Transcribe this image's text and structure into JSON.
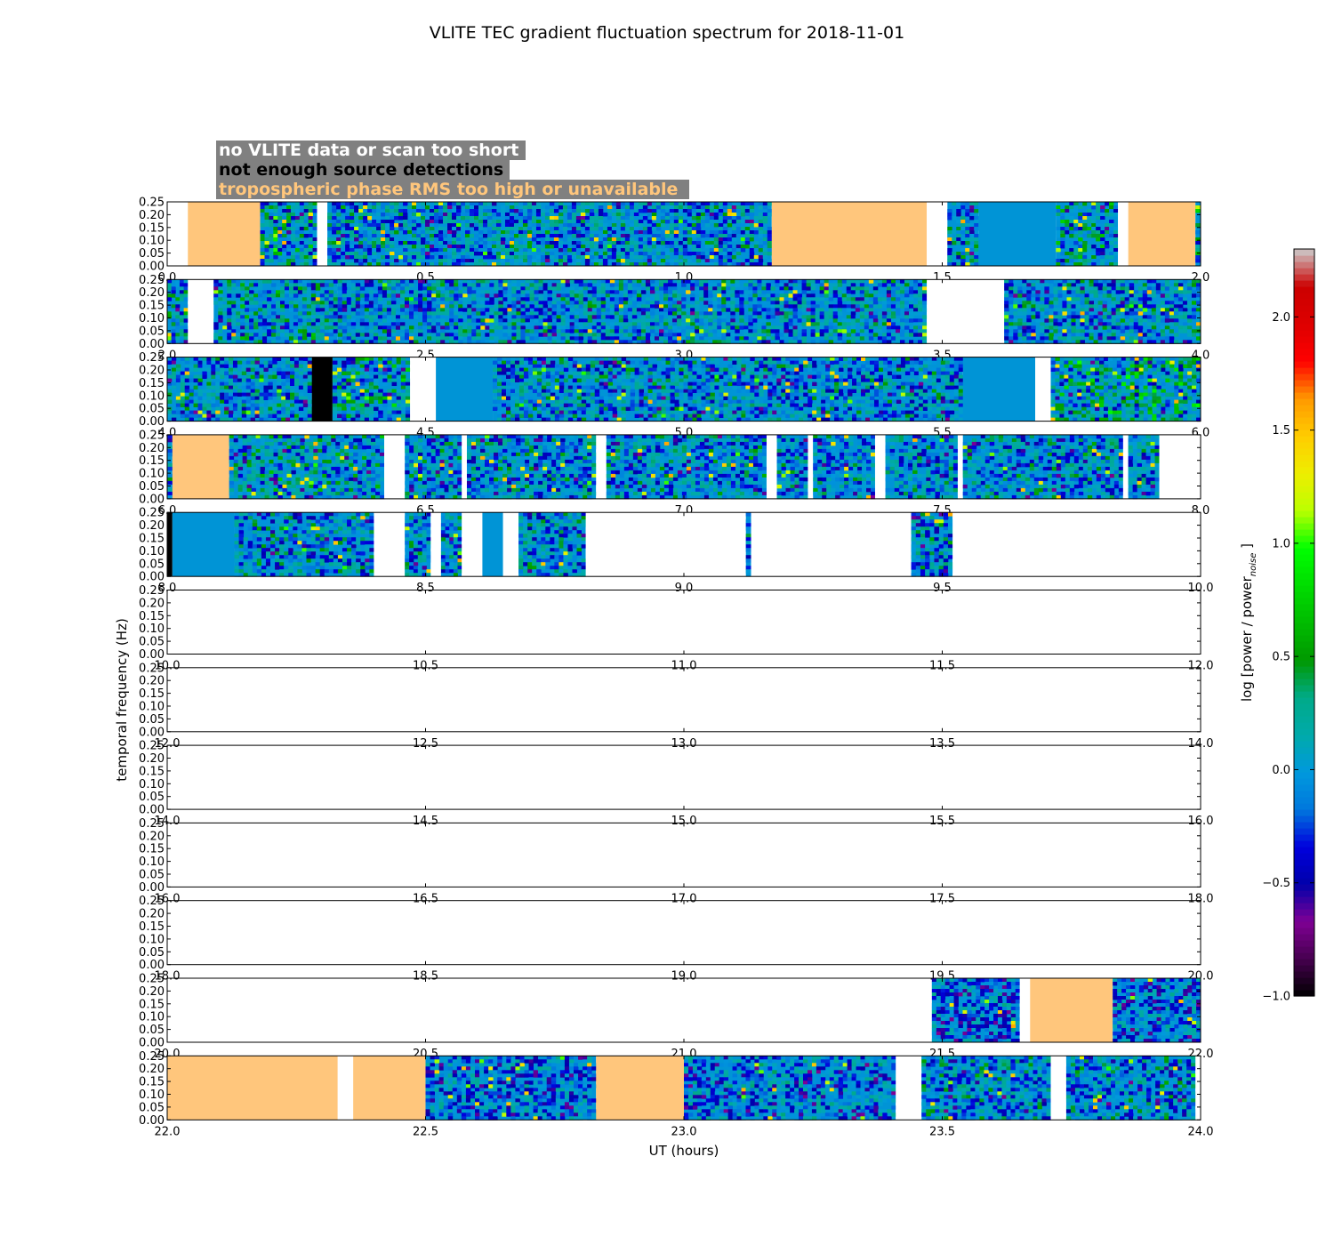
{
  "chart_data": {
    "type": "heatmap",
    "title": "VLITE TEC gradient fluctuation spectrum for 2018-11-01",
    "xlabel": "UT (hours)",
    "ylabel": "temporal frequency (Hz)",
    "ylim": [
      0,
      0.25
    ],
    "yticks": [
      "0.00",
      "0.05",
      "0.10",
      "0.15",
      "0.20",
      "0.25"
    ],
    "grid": false,
    "legend": {
      "placement": "top-left",
      "entries": [
        {
          "text": "no VLITE data or scan too short",
          "color": "#ffffff",
          "background": "#808080"
        },
        {
          "text": "not enough source detections",
          "color": "#000000",
          "background": "#808080"
        },
        {
          "text": "tropospheric phase RMS too high or unavailable",
          "color": "#ffc67c",
          "background": "#808080"
        }
      ]
    },
    "colorbar": {
      "label": "log [power / power",
      "label_subscript": "noise",
      "label_suffix": "]",
      "range": [
        -1.0,
        2.3
      ],
      "ticks": [
        "−1.0",
        "−0.5",
        "0.0",
        "0.5",
        "1.0",
        "1.5",
        "2.0"
      ],
      "tick_values": [
        -1.0,
        -0.5,
        0.0,
        0.5,
        1.0,
        1.5,
        2.0
      ],
      "colormap": "nipy_spectral"
    },
    "category_colors": {
      "no_data": "#ffffff",
      "few_detections": "#000000",
      "troposphere": "#ffc67c",
      "baseline": "#0094d6"
    },
    "panels": [
      {
        "xlim": [
          0,
          2
        ],
        "xticks": [
          "0.0",
          "0.5",
          "1.0",
          "1.5",
          "2.0"
        ],
        "segments": [
          {
            "start": 0.0,
            "end": 0.04,
            "kind": "none"
          },
          {
            "start": 0.04,
            "end": 0.18,
            "kind": "tropo"
          },
          {
            "start": 0.18,
            "end": 0.29,
            "kind": "spec",
            "level": 0.5,
            "seed": 11
          },
          {
            "start": 0.29,
            "end": 0.31,
            "kind": "none"
          },
          {
            "start": 0.31,
            "end": 1.17,
            "kind": "spec",
            "level": 0.3,
            "seed": 12
          },
          {
            "start": 1.17,
            "end": 1.47,
            "kind": "tropo"
          },
          {
            "start": 1.47,
            "end": 1.51,
            "kind": "none"
          },
          {
            "start": 1.51,
            "end": 1.57,
            "kind": "spec",
            "level": 0.3,
            "seed": 13
          },
          {
            "start": 1.57,
            "end": 1.72,
            "kind": "base"
          },
          {
            "start": 1.72,
            "end": 1.84,
            "kind": "spec",
            "level": 0.5,
            "seed": 14
          },
          {
            "start": 1.84,
            "end": 1.86,
            "kind": "none"
          },
          {
            "start": 1.86,
            "end": 1.99,
            "kind": "tropo"
          },
          {
            "start": 1.99,
            "end": 2.0,
            "kind": "spec",
            "level": 0.5,
            "seed": 15
          }
        ]
      },
      {
        "xlim": [
          2,
          4
        ],
        "xticks": [
          "2.0",
          "2.5",
          "3.0",
          "3.5",
          "4.0"
        ],
        "segments": [
          {
            "start": 2.0,
            "end": 2.04,
            "kind": "spec",
            "level": 0.4,
            "seed": 21
          },
          {
            "start": 2.04,
            "end": 2.09,
            "kind": "none"
          },
          {
            "start": 2.09,
            "end": 2.33,
            "kind": "spec",
            "level": 0.4,
            "seed": 22
          },
          {
            "start": 2.33,
            "end": 3.47,
            "kind": "spec",
            "level": 0.3,
            "seed": 23
          },
          {
            "start": 3.47,
            "end": 3.62,
            "kind": "none"
          },
          {
            "start": 3.62,
            "end": 4.0,
            "kind": "spec",
            "level": 0.3,
            "seed": 24
          }
        ]
      },
      {
        "xlim": [
          4,
          6
        ],
        "xticks": [
          "4.0",
          "4.5",
          "5.0",
          "5.5",
          "6.0"
        ],
        "segments": [
          {
            "start": 4.0,
            "end": 4.28,
            "kind": "spec",
            "level": 0.3,
            "seed": 31
          },
          {
            "start": 4.28,
            "end": 4.32,
            "kind": "few"
          },
          {
            "start": 4.32,
            "end": 4.47,
            "kind": "spec",
            "level": 0.5,
            "seed": 32
          },
          {
            "start": 4.47,
            "end": 4.52,
            "kind": "none"
          },
          {
            "start": 4.52,
            "end": 4.63,
            "kind": "base"
          },
          {
            "start": 4.63,
            "end": 5.54,
            "kind": "spec",
            "level": 0.3,
            "seed": 33
          },
          {
            "start": 5.54,
            "end": 5.68,
            "kind": "base"
          },
          {
            "start": 5.68,
            "end": 5.71,
            "kind": "none"
          },
          {
            "start": 5.71,
            "end": 6.0,
            "kind": "spec",
            "level": 0.6,
            "seed": 34
          }
        ]
      },
      {
        "xlim": [
          6,
          8
        ],
        "xticks": [
          "6.0",
          "6.5",
          "7.0",
          "7.5",
          "8.0"
        ],
        "segments": [
          {
            "start": 6.0,
            "end": 6.01,
            "kind": "spec",
            "level": 0.3,
            "seed": 41
          },
          {
            "start": 6.01,
            "end": 6.12,
            "kind": "tropo"
          },
          {
            "start": 6.12,
            "end": 6.42,
            "kind": "spec",
            "level": 0.4,
            "seed": 42
          },
          {
            "start": 6.42,
            "end": 6.46,
            "kind": "none"
          },
          {
            "start": 6.46,
            "end": 6.57,
            "kind": "spec",
            "level": 0.3,
            "seed": 43
          },
          {
            "start": 6.57,
            "end": 6.58,
            "kind": "none"
          },
          {
            "start": 6.58,
            "end": 6.83,
            "kind": "spec",
            "level": 0.3,
            "seed": 44
          },
          {
            "start": 6.83,
            "end": 6.85,
            "kind": "none"
          },
          {
            "start": 6.85,
            "end": 7.16,
            "kind": "spec",
            "level": 0.3,
            "seed": 45
          },
          {
            "start": 7.16,
            "end": 7.18,
            "kind": "none"
          },
          {
            "start": 7.18,
            "end": 7.24,
            "kind": "spec",
            "level": 0.3,
            "seed": 46
          },
          {
            "start": 7.24,
            "end": 7.25,
            "kind": "none"
          },
          {
            "start": 7.25,
            "end": 7.37,
            "kind": "spec",
            "level": 0.3,
            "seed": 47
          },
          {
            "start": 7.37,
            "end": 7.39,
            "kind": "none"
          },
          {
            "start": 7.39,
            "end": 7.53,
            "kind": "spec",
            "level": 0.3,
            "seed": 48
          },
          {
            "start": 7.53,
            "end": 7.54,
            "kind": "none"
          },
          {
            "start": 7.54,
            "end": 7.85,
            "kind": "spec",
            "level": 0.3,
            "seed": 49
          },
          {
            "start": 7.85,
            "end": 7.86,
            "kind": "none"
          },
          {
            "start": 7.86,
            "end": 7.92,
            "kind": "spec",
            "level": 0.3,
            "seed": 50
          },
          {
            "start": 7.92,
            "end": 8.0,
            "kind": "none"
          }
        ]
      },
      {
        "xlim": [
          8,
          10
        ],
        "xticks": [
          "8.0",
          "8.5",
          "9.0",
          "9.5",
          "10.0"
        ],
        "segments": [
          {
            "start": 8.0,
            "end": 8.01,
            "kind": "few"
          },
          {
            "start": 8.01,
            "end": 8.13,
            "kind": "base"
          },
          {
            "start": 8.13,
            "end": 8.4,
            "kind": "spec",
            "level": 0.3,
            "seed": 51
          },
          {
            "start": 8.4,
            "end": 8.46,
            "kind": "none"
          },
          {
            "start": 8.46,
            "end": 8.51,
            "kind": "spec",
            "level": 0.3,
            "seed": 52
          },
          {
            "start": 8.51,
            "end": 8.53,
            "kind": "none"
          },
          {
            "start": 8.53,
            "end": 8.57,
            "kind": "spec",
            "level": 0.4,
            "seed": 53
          },
          {
            "start": 8.57,
            "end": 8.61,
            "kind": "none"
          },
          {
            "start": 8.61,
            "end": 8.65,
            "kind": "base"
          },
          {
            "start": 8.65,
            "end": 8.68,
            "kind": "none"
          },
          {
            "start": 8.68,
            "end": 8.81,
            "kind": "spec",
            "level": 0.3,
            "seed": 54
          },
          {
            "start": 8.81,
            "end": 9.12,
            "kind": "none"
          },
          {
            "start": 9.12,
            "end": 9.13,
            "kind": "spec",
            "level": 0.3,
            "seed": 55
          },
          {
            "start": 9.13,
            "end": 9.44,
            "kind": "none"
          },
          {
            "start": 9.44,
            "end": 9.52,
            "kind": "spec",
            "level": 0.3,
            "seed": 56
          },
          {
            "start": 9.52,
            "end": 10.0,
            "kind": "none"
          }
        ]
      },
      {
        "xlim": [
          10,
          12
        ],
        "xticks": [
          "10.0",
          "10.5",
          "11.0",
          "11.5",
          "12.0"
        ],
        "segments": []
      },
      {
        "xlim": [
          12,
          14
        ],
        "xticks": [
          "12.0",
          "12.5",
          "13.0",
          "13.5",
          "14.0"
        ],
        "segments": []
      },
      {
        "xlim": [
          14,
          16
        ],
        "xticks": [
          "14.0",
          "14.5",
          "15.0",
          "15.5",
          "16.0"
        ],
        "segments": []
      },
      {
        "xlim": [
          16,
          18
        ],
        "xticks": [
          "16.0",
          "16.5",
          "17.0",
          "17.5",
          "18.0"
        ],
        "segments": []
      },
      {
        "xlim": [
          18,
          20
        ],
        "xticks": [
          "18.0",
          "18.5",
          "19.0",
          "19.5",
          "20.0"
        ],
        "segments": []
      },
      {
        "xlim": [
          20,
          22
        ],
        "xticks": [
          "20.0",
          "20.5",
          "21.0",
          "21.5",
          "22.0"
        ],
        "segments": [
          {
            "start": 21.48,
            "end": 21.65,
            "kind": "spec",
            "level": 0.1,
            "seed": 61
          },
          {
            "start": 21.65,
            "end": 21.67,
            "kind": "none"
          },
          {
            "start": 21.67,
            "end": 21.83,
            "kind": "tropo"
          },
          {
            "start": 21.83,
            "end": 22.0,
            "kind": "spec",
            "level": 0.1,
            "seed": 62
          }
        ]
      },
      {
        "xlim": [
          22,
          24
        ],
        "xticks": [
          "22.0",
          "22.5",
          "23.0",
          "23.5",
          "24.0"
        ],
        "segments": [
          {
            "start": 22.0,
            "end": 22.33,
            "kind": "tropo"
          },
          {
            "start": 22.33,
            "end": 22.36,
            "kind": "none"
          },
          {
            "start": 22.36,
            "end": 22.5,
            "kind": "tropo"
          },
          {
            "start": 22.5,
            "end": 22.83,
            "kind": "spec",
            "level": 0.1,
            "seed": 71
          },
          {
            "start": 22.83,
            "end": 23.0,
            "kind": "tropo"
          },
          {
            "start": 23.0,
            "end": 23.41,
            "kind": "spec",
            "level": 0.15,
            "seed": 72
          },
          {
            "start": 23.41,
            "end": 23.46,
            "kind": "none"
          },
          {
            "start": 23.46,
            "end": 23.71,
            "kind": "spec",
            "level": 0.3,
            "seed": 73
          },
          {
            "start": 23.71,
            "end": 23.74,
            "kind": "none"
          },
          {
            "start": 23.74,
            "end": 23.99,
            "kind": "spec",
            "level": 0.3,
            "seed": 74
          },
          {
            "start": 23.99,
            "end": 24.0,
            "kind": "none"
          }
        ]
      }
    ]
  }
}
